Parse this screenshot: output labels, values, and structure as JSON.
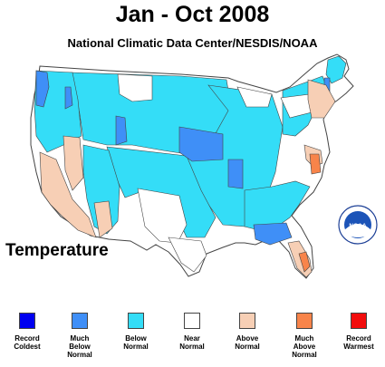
{
  "title": "Jan - Oct 2008",
  "subtitle": "National Climatic Data Center/NESDIS/NOAA",
  "variable_label": "Temperature",
  "logo_text": "NOAA",
  "legend": [
    {
      "label": "Record\nColdest",
      "color": "#0000f0"
    },
    {
      "label": "Much\nBelow\nNormal",
      "color": "#3f8ff7"
    },
    {
      "label": "Below\nNormal",
      "color": "#34ddf7"
    },
    {
      "label": "Near\nNormal",
      "color": "#ffffff"
    },
    {
      "label": "Above\nNormal",
      "color": "#f7cfb5"
    },
    {
      "label": "Much\nAbove\nNormal",
      "color": "#f8844a"
    },
    {
      "label": "Record\nWarmest",
      "color": "#f20d0d"
    }
  ]
}
